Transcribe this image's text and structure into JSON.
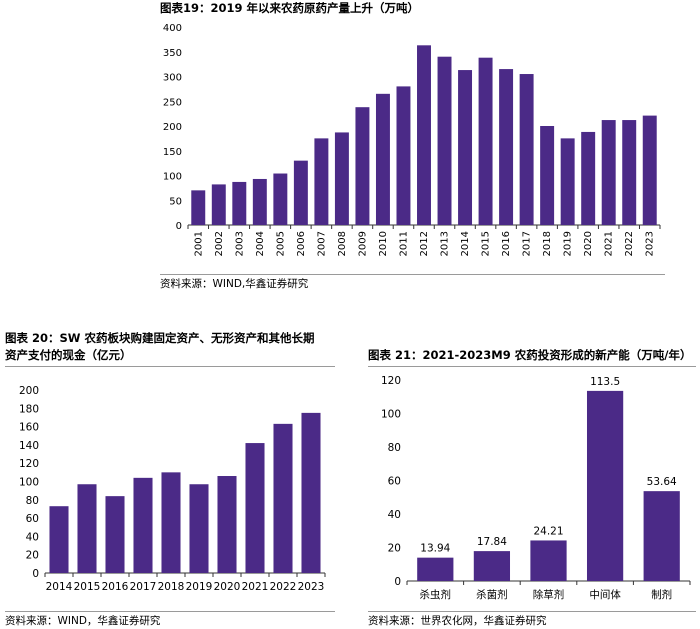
{
  "colors": {
    "bar": "#4b2a87",
    "axis": "#333333"
  },
  "chart_data": [
    {
      "type": "bar",
      "title": "图表19：2019 年以来农药原药产量上升（万吨）",
      "source": "资料来源：WIND,华鑫证券研究",
      "categories": [
        "2001",
        "2002",
        "2003",
        "2004",
        "2005",
        "2006",
        "2007",
        "2008",
        "2009",
        "2010",
        "2011",
        "2012",
        "2013",
        "2014",
        "2015",
        "2016",
        "2017",
        "2018",
        "2019",
        "2020",
        "2021",
        "2022",
        "2023"
      ],
      "values": [
        70,
        82,
        87,
        93,
        104,
        130,
        175,
        187,
        238,
        265,
        280,
        363,
        340,
        313,
        338,
        315,
        305,
        200,
        175,
        188,
        212,
        212,
        221
      ],
      "yticks": [
        "0",
        "50",
        "100",
        "150",
        "200",
        "250",
        "300",
        "350",
        "400"
      ],
      "ylim": [
        0,
        400
      ],
      "xlabel": "",
      "ylabel": ""
    },
    {
      "type": "bar",
      "title_line1": "图表 20：SW 农药板块购建固定资产、无形资产和其他长期",
      "title_line2": "资产支付的现金（亿元）",
      "source": "资料来源：WIND，华鑫证券研究",
      "categories": [
        "2014",
        "2015",
        "2016",
        "2017",
        "2018",
        "2019",
        "2020",
        "2021",
        "2022",
        "2023"
      ],
      "values": [
        73,
        97,
        84,
        104,
        110,
        97,
        106,
        142,
        163,
        175
      ],
      "yticks": [
        "0",
        "20",
        "40",
        "60",
        "80",
        "100",
        "120",
        "140",
        "160",
        "180",
        "200"
      ],
      "ylim": [
        0,
        200
      ],
      "xlabel": "",
      "ylabel": ""
    },
    {
      "type": "bar",
      "title": "图表 21：2021-2023M9 农药投资形成的新产能（万吨/年）",
      "source": "资料来源：世界农化网，华鑫证券研究",
      "categories": [
        "杀虫剂",
        "杀菌剂",
        "除草剂",
        "中间体",
        "制剂"
      ],
      "values": [
        13.94,
        17.84,
        24.21,
        113.5,
        53.64
      ],
      "labels": [
        "13.94",
        "17.84",
        "24.21",
        "113.5",
        "53.64"
      ],
      "yticks": [
        "0",
        "20",
        "40",
        "60",
        "80",
        "100",
        "120"
      ],
      "ylim": [
        0,
        120
      ],
      "xlabel": "",
      "ylabel": ""
    }
  ]
}
